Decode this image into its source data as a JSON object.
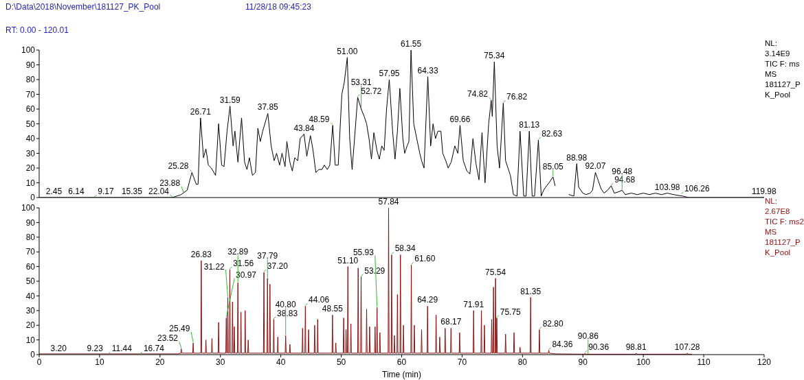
{
  "chart_data": [
    {
      "type": "line",
      "title": "D:\\Data\\2018\\November\\181127_PK_Pool",
      "subtitle": "11/28/18 09:45:23",
      "color": "#000000",
      "xlim": [
        0,
        120
      ],
      "ylim": [
        0,
        100
      ],
      "yticks": [
        0,
        10,
        20,
        30,
        40,
        50,
        60,
        70,
        80,
        90,
        100
      ],
      "tick_labels": "y",
      "grid": false,
      "x": [
        0,
        2.45,
        6.14,
        9.17,
        15.35,
        22.04,
        23.5,
        24.5,
        25.28,
        26.0,
        26.3,
        26.71,
        27.2,
        27.6,
        28.0,
        28.5,
        29.2,
        29.7,
        30.2,
        30.6,
        31.1,
        31.59,
        32.1,
        32.4,
        32.9,
        33.5,
        34.0,
        34.4,
        34.8,
        35.3,
        35.8,
        36.2,
        36.6,
        37.0,
        37.85,
        38.4,
        38.9,
        39.3,
        39.8,
        40.2,
        40.7,
        41.0,
        41.5,
        41.9,
        42.3,
        42.8,
        43.2,
        43.84,
        44.3,
        44.9,
        45.3,
        45.8,
        46.3,
        46.8,
        47.2,
        47.7,
        48.1,
        48.59,
        49.0,
        49.5,
        50.1,
        50.5,
        51.0,
        51.4,
        51.8,
        52.2,
        52.72,
        53.31,
        53.8,
        54.2,
        54.6,
        55.0,
        55.4,
        55.9,
        56.3,
        56.7,
        57.1,
        57.5,
        57.95,
        58.5,
        58.9,
        59.3,
        59.7,
        60.2,
        60.5,
        60.9,
        61.2,
        61.55,
        62.0,
        62.5,
        63.0,
        63.3,
        63.7,
        64.33,
        64.8,
        65.2,
        65.6,
        66.0,
        66.5,
        66.8,
        67.3,
        67.7,
        68.2,
        68.8,
        69.3,
        69.66,
        70.2,
        70.8,
        71.3,
        71.8,
        72.3,
        72.8,
        73.3,
        73.8,
        74.4,
        74.82,
        75.0,
        75.34,
        75.8,
        76.2,
        76.82,
        77.2,
        77.6,
        78.0,
        78.5,
        79.1,
        79.6,
        80.2,
        80.6,
        81.13,
        81.6,
        82.0,
        82.63,
        83.1,
        83.5,
        84.0,
        84.4,
        85.05,
        85.4,
        86.5,
        87.7,
        88.5,
        88.98,
        89.3,
        90.0,
        90.5,
        91.2,
        91.6,
        92.07,
        92.5,
        93.0,
        93.5,
        94.1,
        94.68,
        95.2,
        96.0,
        96.48,
        97.0,
        98.0,
        99.0,
        100.0,
        101.0,
        102.0,
        103.0,
        103.98,
        105.0,
        106.5,
        107.5,
        119.98,
        120
      ],
      "values": [
        0,
        0,
        0,
        0,
        0,
        0,
        2,
        5,
        17,
        9,
        9,
        54,
        27,
        33,
        22,
        20,
        15,
        50,
        22,
        21,
        45,
        62,
        35,
        45,
        24,
        54,
        24,
        19,
        27,
        15,
        17,
        47,
        38,
        45,
        57,
        35,
        25,
        30,
        22,
        30,
        21,
        38,
        24,
        18,
        27,
        25,
        40,
        43,
        28,
        42,
        33,
        17,
        19,
        19,
        22,
        19,
        22,
        49,
        22,
        22,
        70,
        78,
        95,
        40,
        19,
        40,
        68,
        60,
        55,
        50,
        40,
        26,
        44,
        32,
        26,
        35,
        32,
        60,
        80,
        45,
        26,
        45,
        74,
        40,
        30,
        35,
        38,
        100,
        50,
        40,
        30,
        25,
        20,
        82,
        35,
        50,
        40,
        45,
        45,
        30,
        25,
        20,
        24,
        35,
        30,
        49,
        25,
        18,
        16,
        40,
        23,
        12,
        44,
        10,
        50,
        66,
        55,
        92,
        35,
        20,
        64,
        25,
        20,
        15,
        2,
        1,
        45,
        1,
        1,
        45,
        1,
        1,
        39,
        1,
        5,
        8,
        10,
        14,
        8,
        null,
        2,
        1,
        23,
        7,
        3,
        2,
        3,
        5,
        17,
        12,
        6,
        3,
        5,
        8,
        3,
        4,
        5,
        2,
        3,
        2,
        3,
        2,
        3,
        2,
        3,
        2,
        1,
        0,
        0,
        0
      ],
      "annotations": [
        "RT: 0.00 - 120.01",
        "NL:\n3.14E9\nTIC F: ms\nMS\n181127_PK_Pool",
        {
          "text": "2.45",
          "x": 2.45,
          "y": 0
        },
        {
          "text": "6.14",
          "x": 6.14,
          "y": 0
        },
        {
          "text": "9.17",
          "x": 9.17,
          "y": 0
        },
        {
          "text": "15.35",
          "x": 15.35,
          "y": 0
        },
        {
          "text": "22.04",
          "x": 22.04,
          "y": 0
        },
        {
          "text": "23.88",
          "x": 23.88,
          "y": 3
        },
        {
          "text": "25.28",
          "x": 25.28,
          "y": 17
        },
        {
          "text": "26.71",
          "x": 26.71,
          "y": 54
        },
        {
          "text": "31.59",
          "x": 31.59,
          "y": 62
        },
        {
          "text": "37.85",
          "x": 37.85,
          "y": 57
        },
        {
          "text": "43.84",
          "x": 43.84,
          "y": 43
        },
        {
          "text": "48.59",
          "x": 48.59,
          "y": 49
        },
        {
          "text": "51.00",
          "x": 51.0,
          "y": 95
        },
        {
          "text": "52.72",
          "x": 52.72,
          "y": 68
        },
        {
          "text": "53.31",
          "x": 53.31,
          "y": 60
        },
        {
          "text": "57.95",
          "x": 57.95,
          "y": 80
        },
        {
          "text": "61.55",
          "x": 61.55,
          "y": 100
        },
        {
          "text": "64.33",
          "x": 64.33,
          "y": 82
        },
        {
          "text": "69.66",
          "x": 69.66,
          "y": 49
        },
        {
          "text": "74.82",
          "x": 74.82,
          "y": 66
        },
        {
          "text": "75.34",
          "x": 75.34,
          "y": 92
        },
        {
          "text": "76.82",
          "x": 76.82,
          "y": 64
        },
        {
          "text": "81.13",
          "x": 81.13,
          "y": 45
        },
        {
          "text": "82.63",
          "x": 82.63,
          "y": 39
        },
        {
          "text": "85.05",
          "x": 85.05,
          "y": 14
        },
        {
          "text": "88.98",
          "x": 88.98,
          "y": 23
        },
        {
          "text": "92.07",
          "x": 92.07,
          "y": 17
        },
        {
          "text": "94.68",
          "x": 94.68,
          "y": 8
        },
        {
          "text": "96.48",
          "x": 96.48,
          "y": 5
        },
        {
          "text": "103.98",
          "x": 103.98,
          "y": 3
        },
        {
          "text": "106.26",
          "x": 106.26,
          "y": 2
        },
        {
          "text": "119.98",
          "x": 119.98,
          "y": 0
        }
      ]
    },
    {
      "type": "line",
      "xlabel": "Time (min)",
      "color": "#8b1010",
      "xlim": [
        0,
        120
      ],
      "xticks": [
        0,
        10,
        20,
        30,
        40,
        50,
        60,
        70,
        80,
        90,
        100,
        110,
        120
      ],
      "ylim": [
        0,
        100
      ],
      "yticks": [
        0,
        10,
        20,
        30,
        40,
        50,
        60,
        70,
        80,
        90,
        100
      ],
      "grid": false,
      "x": [
        0,
        19,
        23,
        23.44,
        23.52,
        23.6,
        25.41,
        25.49,
        25.57,
        26.75,
        26.83,
        26.91,
        27.52,
        27.6,
        27.68,
        28.52,
        28.6,
        28.68,
        29.62,
        29.7,
        29.78,
        30.89,
        30.97,
        31.05,
        31.14,
        31.22,
        31.3,
        31.48,
        31.56,
        31.64,
        31.92,
        32.0,
        32.08,
        32.22,
        32.3,
        32.38,
        32.81,
        32.89,
        32.97,
        33.32,
        33.4,
        33.48,
        34.02,
        34.1,
        34.18,
        34.52,
        34.6,
        34.68,
        37.12,
        37.2,
        37.28,
        37.71,
        37.79,
        37.87,
        38.12,
        38.2,
        38.28,
        38.75,
        38.83,
        38.91,
        39.42,
        39.5,
        39.58,
        40.72,
        40.8,
        40.88,
        41.42,
        41.5,
        41.58,
        43.52,
        43.6,
        43.68,
        43.98,
        44.06,
        44.14,
        44.52,
        44.6,
        44.68,
        45.52,
        45.6,
        45.68,
        46.02,
        46.1,
        46.18,
        48.47,
        48.55,
        48.63,
        49.02,
        49.1,
        49.18,
        50.32,
        50.4,
        50.48,
        50.72,
        50.8,
        50.88,
        51.02,
        51.1,
        51.18,
        51.52,
        51.6,
        51.68,
        52.72,
        52.8,
        52.88,
        53.21,
        53.29,
        53.37,
        54.12,
        54.2,
        54.28,
        54.62,
        54.7,
        54.78,
        55.52,
        55.6,
        55.68,
        55.85,
        55.93,
        56.01,
        56.32,
        56.4,
        56.48,
        57.76,
        57.84,
        57.92,
        58.26,
        58.34,
        58.42,
        58.72,
        58.8,
        58.88,
        59.22,
        59.3,
        59.38,
        59.72,
        59.8,
        59.88,
        60.22,
        60.3,
        60.38,
        61.52,
        61.6,
        61.68,
        62.02,
        62.1,
        62.18,
        63.22,
        63.3,
        63.38,
        64.21,
        64.29,
        64.37,
        65.62,
        65.7,
        65.78,
        66.22,
        66.3,
        66.38,
        67.12,
        67.2,
        67.28,
        68.09,
        68.17,
        68.25,
        69.52,
        69.6,
        69.68,
        71.83,
        71.91,
        71.99,
        73.12,
        73.2,
        73.28,
        73.62,
        73.7,
        73.78,
        74.82,
        74.9,
        74.98,
        75.12,
        75.2,
        75.28,
        75.46,
        75.54,
        75.62,
        75.67,
        75.75,
        75.83,
        77.12,
        77.2,
        77.28,
        78.52,
        78.6,
        78.68,
        79.52,
        79.6,
        79.68,
        81.27,
        81.35,
        81.43,
        82.72,
        82.8,
        82.88,
        84.28,
        84.36,
        84.44,
        85.5,
        90.28,
        90.36,
        90.44,
        98.73,
        98.81,
        98.89,
        107.2,
        107.28,
        107.36,
        108
      ],
      "values": [
        0.5,
        0.5,
        0.5,
        1,
        4,
        1,
        1,
        8,
        1,
        1,
        64,
        1,
        1,
        10,
        1,
        1,
        11,
        1,
        1,
        22,
        1,
        1,
        25,
        1,
        1,
        39,
        1,
        1,
        58,
        1,
        1,
        36,
        1,
        1,
        19,
        1,
        1,
        49,
        1,
        1,
        29,
        1,
        1,
        30,
        1,
        1,
        10,
        1,
        1,
        56,
        1,
        1,
        52,
        1,
        1,
        48,
        1,
        1,
        24,
        1,
        1,
        12,
        1,
        1,
        13,
        1,
        1,
        7,
        1,
        1,
        18,
        1,
        1,
        33,
        1,
        1,
        17,
        1,
        1,
        20,
        1,
        1,
        24,
        1,
        1,
        27,
        1,
        1,
        8,
        1,
        1,
        25,
        1,
        1,
        17,
        1,
        1,
        60,
        1,
        1,
        21,
        1,
        1,
        59,
        1,
        1,
        53,
        1,
        1,
        31,
        1,
        1,
        19,
        1,
        1,
        19,
        1,
        1,
        32,
        1,
        1,
        15,
        1,
        1,
        100,
        1,
        1,
        68,
        1,
        1,
        13,
        1,
        1,
        41,
        1,
        1,
        68,
        1,
        1,
        20,
        1,
        1,
        61,
        1,
        1,
        20,
        1,
        1,
        17,
        1,
        1,
        33,
        1,
        1,
        27,
        1,
        1,
        12,
        1,
        1,
        18,
        1,
        1,
        18,
        1,
        1,
        15,
        1,
        1,
        30,
        1,
        1,
        30,
        1,
        1,
        20,
        1,
        1,
        24,
        1,
        1,
        46,
        1,
        1,
        52,
        1,
        1,
        25,
        1,
        1,
        14,
        1,
        1,
        15,
        1,
        1,
        5,
        1,
        1,
        39,
        1,
        1,
        17,
        1,
        1,
        3,
        1,
        0.5,
        0.3,
        1,
        0.3,
        0.3,
        1,
        0.3,
        0.3,
        1,
        0.3,
        0.3
      ],
      "annotations": [
        "NL:\n2.67E8\nTIC F: ms2\n MS\n181127_PK_Pool",
        {
          "text": "3.20",
          "x": 3.2,
          "y": 0
        },
        {
          "text": "9.23",
          "x": 9.23,
          "y": 0
        },
        {
          "text": "11.44",
          "x": 11.44,
          "y": 0
        },
        {
          "text": "16.74",
          "x": 16.74,
          "y": 0
        },
        {
          "text": "23.52",
          "x": 23.52,
          "y": 4
        },
        {
          "text": "25.49",
          "x": 25.49,
          "y": 8
        },
        {
          "text": "26.83",
          "x": 26.83,
          "y": 64
        },
        {
          "text": "30.97",
          "x": 30.97,
          "y": 25
        },
        {
          "text": "31.22",
          "x": 31.22,
          "y": 39
        },
        {
          "text": "31.56",
          "x": 31.56,
          "y": 58
        },
        {
          "text": "32.89",
          "x": 32.89,
          "y": 49
        },
        {
          "text": "37.20",
          "x": 37.2,
          "y": 56
        },
        {
          "text": "37.79",
          "x": 37.79,
          "y": 52
        },
        {
          "text": "38.83",
          "x": 38.83,
          "y": 24
        },
        {
          "text": "40.80",
          "x": 40.8,
          "y": 13
        },
        {
          "text": "44.06",
          "x": 44.06,
          "y": 33
        },
        {
          "text": "48.55",
          "x": 48.55,
          "y": 27
        },
        {
          "text": "51.10",
          "x": 51.1,
          "y": 60
        },
        {
          "text": "53.29",
          "x": 53.29,
          "y": 53
        },
        {
          "text": "55.93",
          "x": 55.93,
          "y": 32
        },
        {
          "text": "57.84",
          "x": 57.84,
          "y": 100
        },
        {
          "text": "58.34",
          "x": 58.34,
          "y": 68
        },
        {
          "text": "61.60",
          "x": 61.6,
          "y": 61
        },
        {
          "text": "64.29",
          "x": 64.29,
          "y": 33
        },
        {
          "text": "68.17",
          "x": 68.17,
          "y": 18
        },
        {
          "text": "71.91",
          "x": 71.91,
          "y": 30
        },
        {
          "text": "75.54",
          "x": 75.54,
          "y": 52
        },
        {
          "text": "75.75",
          "x": 75.75,
          "y": 25
        },
        {
          "text": "81.35",
          "x": 81.35,
          "y": 39
        },
        {
          "text": "82.80",
          "x": 82.8,
          "y": 17
        },
        {
          "text": "84.36",
          "x": 84.36,
          "y": 3
        },
        {
          "text": "90.36",
          "x": 90.36,
          "y": 1
        },
        {
          "text": "90.86",
          "x": 90.86,
          "y": 0
        },
        {
          "text": "98.81",
          "x": 98.81,
          "y": 1
        },
        {
          "text": "107.28",
          "x": 107.28,
          "y": 1
        }
      ]
    }
  ]
}
